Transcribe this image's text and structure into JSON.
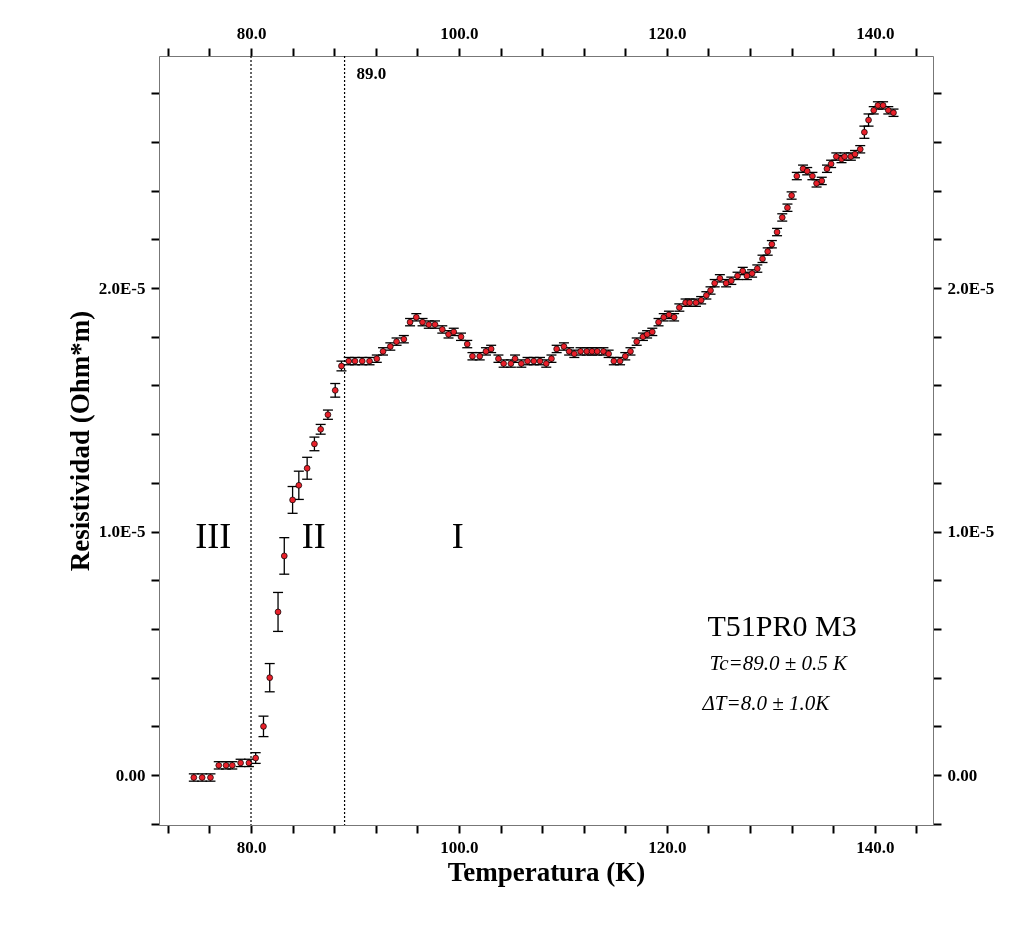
{
  "chart_data": {
    "type": "scatter",
    "xlabel": "Temperatura (K)",
    "ylabel": "Resistividad (Ohm*m)",
    "xlim": [
      71.15,
      145.6
    ],
    "ylim": [
      -2.05e-06,
      2.953e-05
    ],
    "x2lim": [
      71.15,
      145.6
    ],
    "y2lim": [
      -2.05e-06,
      2.953e-05
    ],
    "xticks": [
      {
        "value": 72,
        "label": null
      },
      {
        "value": 76,
        "label": null
      },
      {
        "value": 80,
        "label": "80.0"
      },
      {
        "value": 84,
        "label": null
      },
      {
        "value": 88,
        "label": null
      },
      {
        "value": 92,
        "label": null
      },
      {
        "value": 96,
        "label": null
      },
      {
        "value": 100,
        "label": "100.0"
      },
      {
        "value": 104,
        "label": null
      },
      {
        "value": 108,
        "label": null
      },
      {
        "value": 112,
        "label": null
      },
      {
        "value": 116,
        "label": null
      },
      {
        "value": 120,
        "label": "120.0"
      },
      {
        "value": 124,
        "label": null
      },
      {
        "value": 128,
        "label": null
      },
      {
        "value": 132,
        "label": null
      },
      {
        "value": 136,
        "label": null
      },
      {
        "value": 140,
        "label": "140.0"
      },
      {
        "value": 144,
        "label": null
      }
    ],
    "x2ticks": [
      {
        "value": 72,
        "label": null
      },
      {
        "value": 76,
        "label": null
      },
      {
        "value": 80,
        "label": "80.0"
      },
      {
        "value": 84,
        "label": null
      },
      {
        "value": 88,
        "label": null
      },
      {
        "value": 92,
        "label": null
      },
      {
        "value": 96,
        "label": null
      },
      {
        "value": 100,
        "label": "100.0"
      },
      {
        "value": 104,
        "label": null
      },
      {
        "value": 108,
        "label": null
      },
      {
        "value": 112,
        "label": null
      },
      {
        "value": 116,
        "label": null
      },
      {
        "value": 120,
        "label": "120.0"
      },
      {
        "value": 124,
        "label": null
      },
      {
        "value": 128,
        "label": null
      },
      {
        "value": 132,
        "label": null
      },
      {
        "value": 136,
        "label": null
      },
      {
        "value": 140,
        "label": "140.0"
      },
      {
        "value": 144,
        "label": null
      }
    ],
    "yticks": [
      {
        "value": -2e-06,
        "label": null
      },
      {
        "value": 0,
        "label": "0.00"
      },
      {
        "value": 2e-06,
        "label": null
      },
      {
        "value": 4e-06,
        "label": null
      },
      {
        "value": 6e-06,
        "label": null
      },
      {
        "value": 8e-06,
        "label": null
      },
      {
        "value": 1e-05,
        "label": "1.0E-5"
      },
      {
        "value": 1.2e-05,
        "label": null
      },
      {
        "value": 1.4e-05,
        "label": null
      },
      {
        "value": 1.6e-05,
        "label": null
      },
      {
        "value": 1.8e-05,
        "label": null
      },
      {
        "value": 2e-05,
        "label": "2.0E-5"
      },
      {
        "value": 2.2e-05,
        "label": null
      },
      {
        "value": 2.4e-05,
        "label": null
      },
      {
        "value": 2.6e-05,
        "label": null
      },
      {
        "value": 2.8e-05,
        "label": null
      }
    ],
    "y2ticks": [
      {
        "value": -2e-06,
        "label": null
      },
      {
        "value": 0,
        "label": "0.00"
      },
      {
        "value": 2e-06,
        "label": null
      },
      {
        "value": 4e-06,
        "label": null
      },
      {
        "value": 6e-06,
        "label": null
      },
      {
        "value": 8e-06,
        "label": null
      },
      {
        "value": 1e-05,
        "label": "1.0E-5"
      },
      {
        "value": 1.2e-05,
        "label": null
      },
      {
        "value": 1.4e-05,
        "label": null
      },
      {
        "value": 1.6e-05,
        "label": null
      },
      {
        "value": 1.8e-05,
        "label": null
      },
      {
        "value": 2e-05,
        "label": "2.0E-5"
      },
      {
        "value": 2.2e-05,
        "label": null
      },
      {
        "value": 2.4e-05,
        "label": null
      },
      {
        "value": 2.6e-05,
        "label": null
      },
      {
        "value": 2.8e-05,
        "label": null
      }
    ],
    "marker": "circle",
    "grid": false,
    "ref_lines": [
      {
        "axis": "x",
        "value": 80,
        "label": null,
        "line_style": "dotted"
      },
      {
        "axis": "x",
        "value": 89,
        "label": "89.0",
        "line_style": "dotted"
      }
    ],
    "annotations": [
      "III",
      "II",
      "I",
      "T51PR0 M3",
      "Tc=89.0  ± 0.5 K",
      "ΔT=8.0 ± 1.0K"
    ],
    "series": [
      {
        "color": "#e8202a",
        "x": [
          74.5,
          75.3,
          76.1,
          76.9,
          77.6,
          78.2,
          79.0,
          79.8,
          80.45,
          81.2,
          81.8,
          82.6,
          83.2,
          84.0,
          84.6,
          85.4,
          86.1,
          86.7,
          87.4,
          88.1,
          88.7,
          89.4,
          90.0,
          90.7,
          91.4,
          92.1,
          92.7,
          93.4,
          94.0,
          94.7,
          95.3,
          95.9,
          96.5,
          97.1,
          97.7,
          98.4,
          99.0,
          99.5,
          100.2,
          100.8,
          101.3,
          102.0,
          102.6,
          103.1,
          103.8,
          104.3,
          105.0,
          105.4,
          106.0,
          106.6,
          107.2,
          107.8,
          108.4,
          108.9,
          109.4,
          110.1,
          110.6,
          111.1,
          111.7,
          112.3,
          112.8,
          113.3,
          113.9,
          114.4,
          114.9,
          115.5,
          116.0,
          116.5,
          117.1,
          117.7,
          118.1,
          118.6,
          119.2,
          119.7,
          120.2,
          120.7,
          121.2,
          121.8,
          122.2,
          122.8,
          123.3,
          123.8,
          124.2,
          124.6,
          125.1,
          125.7,
          126.2,
          126.8,
          127.3,
          127.7,
          128.2,
          128.7,
          129.2,
          129.7,
          130.1,
          130.6,
          131.1,
          131.6,
          132.0,
          132.5,
          133.1,
          133.5,
          134.0,
          134.4,
          134.9,
          135.4,
          135.8,
          136.3,
          136.8,
          137.1,
          137.7,
          138.1,
          138.6,
          139.0,
          139.4,
          139.9,
          140.3,
          140.8,
          141.3,
          141.8
        ],
        "values": [
          -1e-07,
          -1e-07,
          -1e-07,
          4e-07,
          4e-07,
          4e-07,
          5e-07,
          5e-07,
          7e-07,
          2e-06,
          4e-06,
          6.7e-06,
          9e-06,
          1.13e-05,
          1.19e-05,
          1.26e-05,
          1.36e-05,
          1.42e-05,
          1.48e-05,
          1.58e-05,
          1.68e-05,
          1.7e-05,
          1.7e-05,
          1.7e-05,
          1.7e-05,
          1.71e-05,
          1.74e-05,
          1.76e-05,
          1.78e-05,
          1.79e-05,
          1.86e-05,
          1.88e-05,
          1.86e-05,
          1.85e-05,
          1.85e-05,
          1.83e-05,
          1.81e-05,
          1.82e-05,
          1.8e-05,
          1.77e-05,
          1.72e-05,
          1.72e-05,
          1.74e-05,
          1.75e-05,
          1.71e-05,
          1.69e-05,
          1.69e-05,
          1.71e-05,
          1.69e-05,
          1.7e-05,
          1.7e-05,
          1.7e-05,
          1.69e-05,
          1.71e-05,
          1.75e-05,
          1.76e-05,
          1.74e-05,
          1.73e-05,
          1.74e-05,
          1.74e-05,
          1.74e-05,
          1.74e-05,
          1.74e-05,
          1.73e-05,
          1.7e-05,
          1.7e-05,
          1.72e-05,
          1.74e-05,
          1.78e-05,
          1.8e-05,
          1.81e-05,
          1.82e-05,
          1.86e-05,
          1.88e-05,
          1.89e-05,
          1.88e-05,
          1.92e-05,
          1.94e-05,
          1.94e-05,
          1.94e-05,
          1.95e-05,
          1.97e-05,
          1.99e-05,
          2.02e-05,
          2.04e-05,
          2.02e-05,
          2.03e-05,
          2.05e-05,
          2.07e-05,
          2.05e-05,
          2.06e-05,
          2.08e-05,
          2.12e-05,
          2.15e-05,
          2.18e-05,
          2.23e-05,
          2.29e-05,
          2.33e-05,
          2.38e-05,
          2.46e-05,
          2.49e-05,
          2.48e-05,
          2.46e-05,
          2.43e-05,
          2.44e-05,
          2.49e-05,
          2.51e-05,
          2.54e-05,
          2.53e-05,
          2.54e-05,
          2.54e-05,
          2.55e-05,
          2.57e-05,
          2.64e-05,
          2.69e-05,
          2.73e-05,
          2.75e-05,
          2.75e-05,
          2.73e-05,
          2.72e-05
        ],
        "errors": [
          1.5e-07,
          1.5e-07,
          1.5e-07,
          1.5e-07,
          1.5e-07,
          1.5e-07,
          1.5e-07,
          1.5e-07,
          2.2e-07,
          4.2e-07,
          5.8e-07,
          8e-07,
          7.5e-07,
          5.5e-07,
          5.8e-07,
          4.5e-07,
          2.8e-07,
          2e-07,
          1.9e-07,
          2.8e-07,
          2e-07,
          1.5e-07,
          1.5e-07,
          1.5e-07,
          1.5e-07,
          1.5e-07,
          1.5e-07,
          1.5e-07,
          1.5e-07,
          1.5e-07,
          1.5e-07,
          1.5e-07,
          1.5e-07,
          1.5e-07,
          1.5e-07,
          1.5e-07,
          1.5e-07,
          1.5e-07,
          1.5e-07,
          1.5e-07,
          1.5e-07,
          1.5e-07,
          1.5e-07,
          1.5e-07,
          1.5e-07,
          1.5e-07,
          1.5e-07,
          1.5e-07,
          1.5e-07,
          1.5e-07,
          1.5e-07,
          1.5e-07,
          1.5e-07,
          1.5e-07,
          1.5e-07,
          1.5e-07,
          1.5e-07,
          1.5e-07,
          1.5e-07,
          1.5e-07,
          1.5e-07,
          1.5e-07,
          1.5e-07,
          1.5e-07,
          1.5e-07,
          1.5e-07,
          1.5e-07,
          1.5e-07,
          1.5e-07,
          1.5e-07,
          1.5e-07,
          1.5e-07,
          1.5e-07,
          1.5e-07,
          1.5e-07,
          1.5e-07,
          1.5e-07,
          1.5e-07,
          1.5e-07,
          1.5e-07,
          1.5e-07,
          1.5e-07,
          1.5e-07,
          1.5e-07,
          1.5e-07,
          1.5e-07,
          1.5e-07,
          1.5e-07,
          1.5e-07,
          1.5e-07,
          1.5e-07,
          1.5e-07,
          1.5e-07,
          1.5e-07,
          1.5e-07,
          1.5e-07,
          1.5e-07,
          1.5e-07,
          1.5e-07,
          1.5e-07,
          1.5e-07,
          1.5e-07,
          1.5e-07,
          1.5e-07,
          1.5e-07,
          1.5e-07,
          1.5e-07,
          1.5e-07,
          1.5e-07,
          1.5e-07,
          1.5e-07,
          1.5e-07,
          1.5e-07,
          2.5e-07,
          2.5e-07,
          1.5e-07,
          1.5e-07,
          1.5e-07,
          1.5e-07,
          1.5e-07
        ]
      }
    ]
  }
}
